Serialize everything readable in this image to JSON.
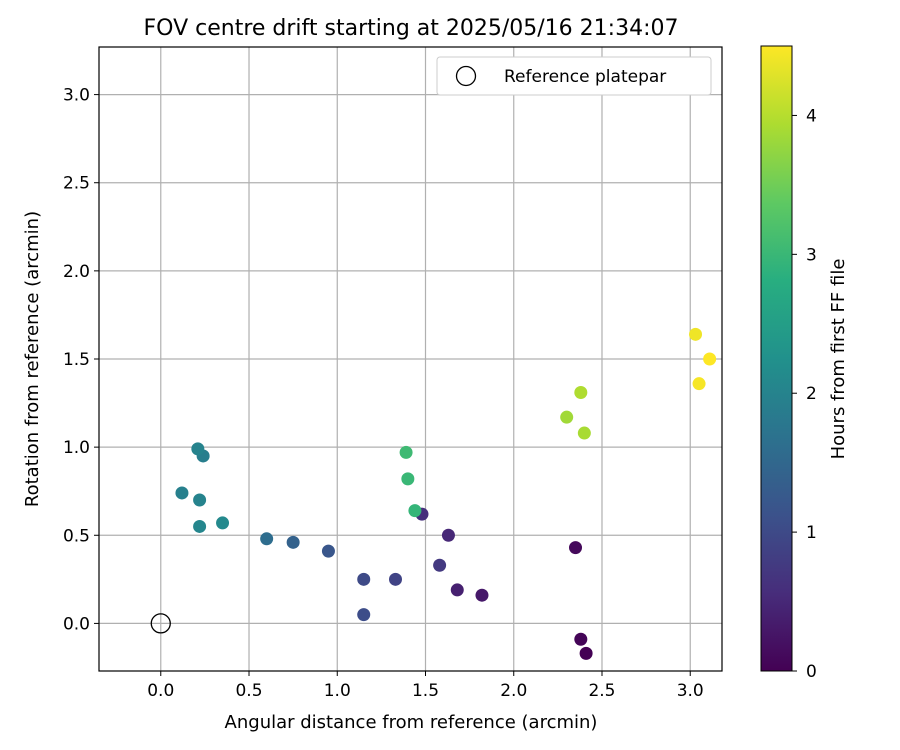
{
  "chart_data": {
    "type": "scatter",
    "title": "FOV centre drift starting at 2025/05/16 21:34:07",
    "xlabel": "Angular distance from reference (arcmin)",
    "ylabel": "Rotation from reference (arcmin)",
    "xlim": [
      -0.35,
      3.18
    ],
    "ylim": [
      -0.27,
      3.27
    ],
    "xticks": [
      0.0,
      0.5,
      1.0,
      1.5,
      2.0,
      2.5,
      3.0
    ],
    "xtick_labels": [
      "0.0",
      "0.5",
      "1.0",
      "1.5",
      "2.0",
      "2.5",
      "3.0"
    ],
    "yticks": [
      0.0,
      0.5,
      1.0,
      1.5,
      2.0,
      2.5,
      3.0
    ],
    "ytick_labels": [
      "0.0",
      "0.5",
      "1.0",
      "1.5",
      "2.0",
      "2.5",
      "3.0"
    ],
    "grid": true,
    "legend_position": "top-right",
    "reference": {
      "name": "Reference platepar",
      "x": 0.0,
      "y": 0.0
    },
    "colorbar": {
      "label": "Hours from first FF file",
      "range": [
        0,
        4.5
      ],
      "ticks": [
        0,
        1,
        2,
        3,
        4
      ],
      "tick_labels": [
        "0",
        "1",
        "2",
        "3",
        "4"
      ],
      "colormap": "viridis"
    },
    "points": [
      {
        "x": 2.41,
        "y": -0.17,
        "hours": 0.0
      },
      {
        "x": 2.38,
        "y": -0.09,
        "hours": 0.05
      },
      {
        "x": 2.35,
        "y": 0.43,
        "hours": 0.1
      },
      {
        "x": 1.82,
        "y": 0.16,
        "hours": 0.3
      },
      {
        "x": 1.68,
        "y": 0.19,
        "hours": 0.4
      },
      {
        "x": 1.63,
        "y": 0.5,
        "hours": 0.5
      },
      {
        "x": 1.48,
        "y": 0.62,
        "hours": 0.6
      },
      {
        "x": 1.58,
        "y": 0.33,
        "hours": 0.75
      },
      {
        "x": 1.33,
        "y": 0.25,
        "hours": 0.9
      },
      {
        "x": 1.15,
        "y": 0.25,
        "hours": 1.0
      },
      {
        "x": 1.15,
        "y": 0.05,
        "hours": 1.05
      },
      {
        "x": 0.95,
        "y": 0.41,
        "hours": 1.2
      },
      {
        "x": 0.75,
        "y": 0.46,
        "hours": 1.4
      },
      {
        "x": 0.6,
        "y": 0.48,
        "hours": 1.6
      },
      {
        "x": 0.35,
        "y": 0.57,
        "hours": 2.1
      },
      {
        "x": 0.22,
        "y": 0.55,
        "hours": 2.05
      },
      {
        "x": 0.22,
        "y": 0.7,
        "hours": 2.0
      },
      {
        "x": 0.12,
        "y": 0.74,
        "hours": 1.95
      },
      {
        "x": 0.24,
        "y": 0.95,
        "hours": 1.9
      },
      {
        "x": 0.21,
        "y": 0.99,
        "hours": 2.0
      },
      {
        "x": 1.44,
        "y": 0.64,
        "hours": 2.95
      },
      {
        "x": 1.4,
        "y": 0.82,
        "hours": 3.0
      },
      {
        "x": 1.39,
        "y": 0.97,
        "hours": 3.05
      },
      {
        "x": 2.3,
        "y": 1.17,
        "hours": 3.85
      },
      {
        "x": 2.4,
        "y": 1.08,
        "hours": 3.9
      },
      {
        "x": 2.38,
        "y": 1.31,
        "hours": 3.95
      },
      {
        "x": 3.03,
        "y": 1.64,
        "hours": 4.4
      },
      {
        "x": 3.05,
        "y": 1.36,
        "hours": 4.45
      },
      {
        "x": 3.11,
        "y": 1.5,
        "hours": 4.5
      }
    ]
  }
}
